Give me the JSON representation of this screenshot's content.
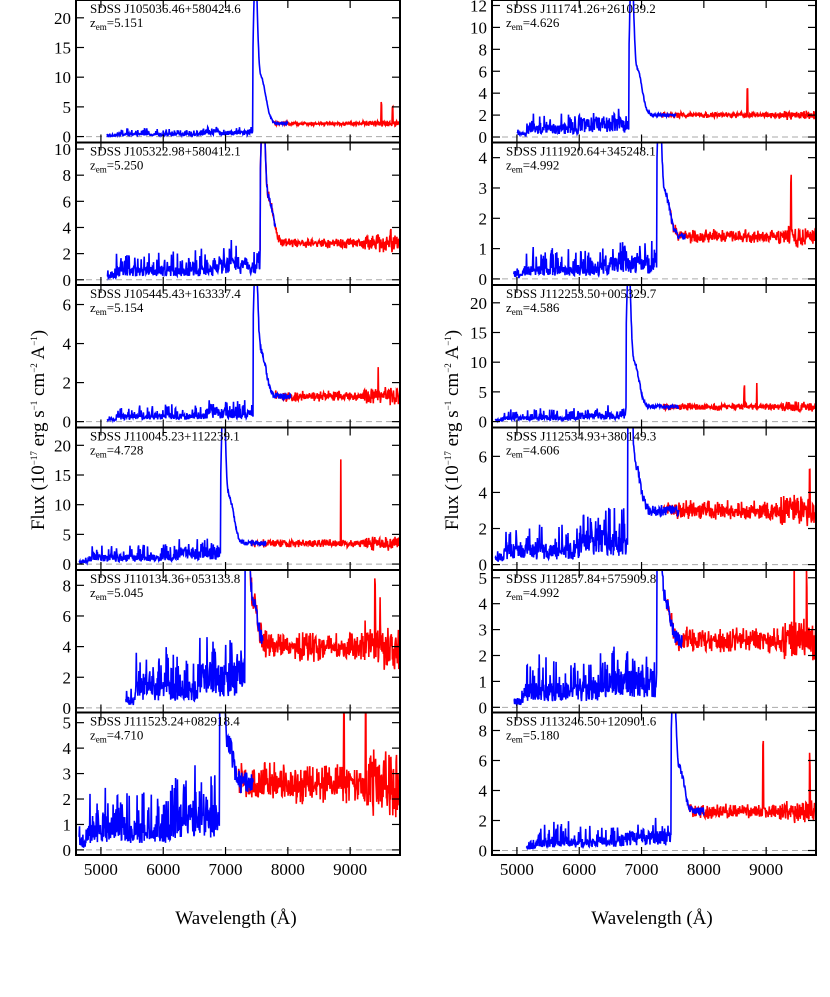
{
  "chart_data": {
    "type": "line",
    "xlabel": "Wavelength (Å)",
    "ylabel": "Flux (10^-17 erg s^-1 cm^-2 A^-1)",
    "ylabel_parts": {
      "a": "Flux (10",
      "e1": "−17",
      "b": " erg s",
      "e2": "−1",
      "c": " cm",
      "e3": "−2",
      "d": " A",
      "e4": "−1",
      "f": ")"
    },
    "xlim": [
      4600,
      9800
    ],
    "xticks": [
      5000,
      6000,
      7000,
      8000,
      9000
    ],
    "grid": false,
    "series_colors": {
      "blue": "#0000ff",
      "red": "#ff0000",
      "zero_line": "#aaaaaa"
    },
    "z_prefix": "z",
    "z_sub": "em",
    "columns": [
      [
        {
          "name": "SDSS J105036.46+580424.6",
          "z": "=5.151",
          "zem": 5.151,
          "ylim": [
            -1,
            23
          ],
          "yticks": [
            0,
            5,
            10,
            15,
            20
          ],
          "blue_end": 8000,
          "peak": 22,
          "cont": 2.2,
          "blue_level": 0.8,
          "noise": 0.35,
          "blue_noise": 0.9,
          "start": 5100,
          "spikes": [
            [
              9500,
              3.5
            ],
            [
              9680,
              2.5
            ]
          ]
        },
        {
          "name": "SDSS J105322.98+580412.1",
          "z": "=5.250",
          "zem": 5.25,
          "ylim": [
            -0.4,
            10.5
          ],
          "yticks": [
            0,
            2,
            4,
            6,
            8,
            10
          ],
          "blue_end": 7800,
          "peak": 9.8,
          "cont": 2.8,
          "blue_level": 1.4,
          "noise": 0.45,
          "blue_noise": 1.4,
          "start": 5100,
          "spikes": [
            [
              9650,
              1.2
            ]
          ]
        },
        {
          "name": "SDSS J105445.43+163337.4",
          "z": "=5.154",
          "zem": 5.154,
          "ylim": [
            -0.3,
            7
          ],
          "yticks": [
            0,
            2,
            4,
            6
          ],
          "blue_end": 8050,
          "peak": 6.4,
          "cont": 1.3,
          "blue_level": 0.55,
          "noise": 0.3,
          "blue_noise": 0.6,
          "start": 5100,
          "spikes": [
            [
              9450,
              1.5
            ]
          ]
        },
        {
          "name": "SDSS J110045.23+112239.1",
          "z": "=4.728",
          "zem": 4.728,
          "ylim": [
            -1,
            23
          ],
          "yticks": [
            0,
            5,
            10,
            15,
            20
          ],
          "blue_end": 7650,
          "peak": 22,
          "cont": 3.5,
          "blue_level": 2.2,
          "noise": 0.8,
          "blue_noise": 2.0,
          "start": 4650,
          "spikes": [
            [
              8850,
              14
            ]
          ]
        },
        {
          "name": "SDSS J110134.36+053133.8",
          "z": "=5.045",
          "zem": 5.045,
          "ylim": [
            -0.3,
            9
          ],
          "yticks": [
            0,
            2,
            4,
            6,
            8
          ],
          "blue_end": 7600,
          "peak": 8.4,
          "cont": 4.0,
          "blue_level": 2.5,
          "noise": 1.1,
          "blue_noise": 2.6,
          "start": 5400,
          "spikes": [
            [
              9400,
              5
            ],
            [
              9480,
              4
            ]
          ]
        },
        {
          "name": "SDSS J111523.24+082918.4",
          "z": "=4.710",
          "zem": 4.71,
          "ylim": [
            -0.2,
            5.4
          ],
          "yticks": [
            0,
            1,
            2,
            3,
            4,
            5
          ],
          "blue_end": 7450,
          "peak": 4.8,
          "cont": 2.6,
          "blue_level": 1.5,
          "noise": 0.9,
          "blue_noise": 1.6,
          "start": 4650,
          "spikes": [
            [
              8900,
              2.6
            ],
            [
              9250,
              2.5
            ]
          ]
        }
      ],
      [
        {
          "name": "SDSS J111741.26+261039.2",
          "z": "=4.626",
          "zem": 4.626,
          "ylim": [
            -0.5,
            12.5
          ],
          "yticks": [
            0,
            2,
            4,
            6,
            8,
            10,
            12
          ],
          "blue_end": 7550,
          "peak": 11.8,
          "cont": 2.0,
          "blue_level": 1.5,
          "noise": 0.3,
          "blue_noise": 1.3,
          "start": 5000,
          "spikes": [
            [
              8700,
              2.6
            ]
          ]
        },
        {
          "name": "SDSS J111920.64+345248.1",
          "z": "=4.992",
          "zem": 4.992,
          "ylim": [
            -0.2,
            4.5
          ],
          "yticks": [
            0,
            1,
            2,
            3,
            4
          ],
          "blue_end": 7700,
          "peak": 4.1,
          "cont": 1.4,
          "blue_level": 0.6,
          "noise": 0.25,
          "blue_noise": 0.7,
          "start": 4950,
          "spikes": [
            [
              9400,
              1.9
            ]
          ]
        },
        {
          "name": "SDSS J112253.50+005329.7",
          "z": "=4.586",
          "zem": 4.586,
          "ylim": [
            -1,
            23
          ],
          "yticks": [
            0,
            5,
            10,
            15,
            20
          ],
          "blue_end": 7600,
          "peak": 21.5,
          "cont": 2.5,
          "blue_level": 1.2,
          "noise": 0.7,
          "blue_noise": 1.6,
          "start": 4650,
          "spikes": [
            [
              8650,
              3.5
            ],
            [
              8850,
              4
            ]
          ]
        },
        {
          "name": "SDSS J112534.93+380149.3",
          "z": "=4.606",
          "zem": 4.606,
          "ylim": [
            -0.3,
            7.6
          ],
          "yticks": [
            0,
            2,
            4,
            6
          ],
          "blue_end": 7600,
          "peak": 7.0,
          "cont": 3.0,
          "blue_level": 1.6,
          "noise": 0.6,
          "blue_noise": 1.6,
          "start": 4650,
          "spikes": [
            [
              9700,
              2
            ]
          ]
        },
        {
          "name": "SDSS J112857.84+575909.8",
          "z": "=4.992",
          "zem": 4.992,
          "ylim": [
            -0.2,
            5.3
          ],
          "yticks": [
            0,
            1,
            2,
            3,
            4,
            5
          ],
          "blue_end": 7650,
          "peak": 4.5,
          "cont": 2.6,
          "blue_level": 1.3,
          "noise": 0.55,
          "blue_noise": 1.3,
          "start": 4950,
          "spikes": [
            [
              9450,
              2.6
            ],
            [
              9650,
              2
            ]
          ]
        },
        {
          "name": "SDSS J113246.50+120901.6",
          "z": "=5.180",
          "zem": 5.18,
          "ylim": [
            -0.3,
            9.2
          ],
          "yticks": [
            0,
            2,
            4,
            6,
            8
          ],
          "blue_end": 8000,
          "peak": 8.3,
          "cont": 2.6,
          "blue_level": 1.1,
          "noise": 0.55,
          "blue_noise": 1.2,
          "start": 5150,
          "spikes": [
            [
              8950,
              4.5
            ],
            [
              9700,
              3.5
            ]
          ]
        }
      ]
    ]
  }
}
